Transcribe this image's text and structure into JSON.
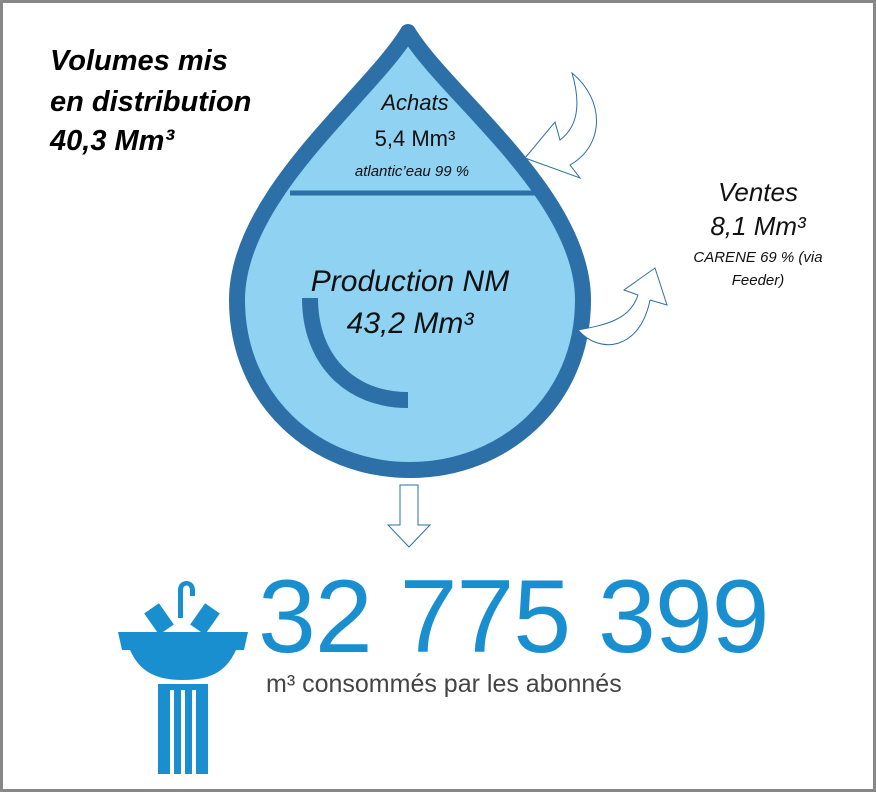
{
  "header": {
    "lines": [
      "Volumes mis",
      "en distribution",
      "40,3 Mm³"
    ]
  },
  "purchases": {
    "label": "Achats",
    "volume": "5,4 Mm³",
    "detail": "atlantic’eau 99 %"
  },
  "production": {
    "label": "Production NM",
    "volume": "43,2 Mm³"
  },
  "sales": {
    "label": "Ventes",
    "volume": "8,1 Mm³",
    "detail": [
      "CARENE 69 % (via",
      "Feeder)"
    ]
  },
  "consumption": {
    "value": "32 775 399",
    "caption": "m³ consommés par les abonnés"
  }
}
